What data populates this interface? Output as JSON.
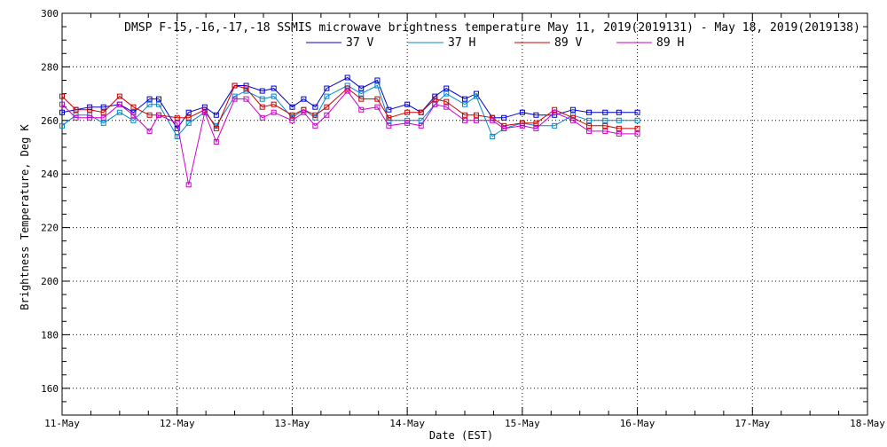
{
  "chart_data": {
    "type": "line",
    "title": "DMSP F-15,-16,-17,-18 SSMIS microwave brightness temperature May 11, 2019(2019131) - May 18, 2019(2019138)",
    "xlabel": "Date (EST)",
    "ylabel": "Brightness Temperature, Deg K",
    "xlim": [
      0,
      7
    ],
    "ylim": [
      150,
      300
    ],
    "grid": true,
    "legend_position": "top-center",
    "x_tick_labels": [
      "11-May",
      "12-May",
      "13-May",
      "14-May",
      "15-May",
      "16-May",
      "17-May",
      "18-May"
    ],
    "y_tick_labels": [
      "160",
      "180",
      "200",
      "220",
      "240",
      "260",
      "280",
      "300"
    ],
    "series": [
      {
        "name": "37 V",
        "color": "#0000cc",
        "x": [
          0.0,
          0.12,
          0.24,
          0.36,
          0.5,
          0.62,
          0.76,
          0.84,
          1.0,
          1.1,
          1.24,
          1.34,
          1.5,
          1.6,
          1.74,
          1.84,
          2.0,
          2.1,
          2.2,
          2.3,
          2.48,
          2.6,
          2.74,
          2.84,
          3.0,
          3.12,
          3.24,
          3.34,
          3.5,
          3.6,
          3.74,
          3.84,
          4.0,
          4.12,
          4.28,
          4.44,
          4.58,
          4.72,
          4.84,
          5.0
        ],
        "values": [
          263,
          264,
          265,
          265,
          266,
          263,
          268,
          268,
          257,
          263,
          265,
          262,
          273,
          273,
          271,
          272,
          265,
          268,
          265,
          272,
          276,
          272,
          275,
          264,
          266,
          263,
          269,
          272,
          268,
          270,
          261,
          261,
          263,
          262,
          262,
          264,
          263,
          263,
          263,
          263
        ]
      },
      {
        "name": "37 H",
        "color": "#0088cc",
        "x": [
          0.0,
          0.12,
          0.24,
          0.36,
          0.5,
          0.62,
          0.76,
          0.84,
          1.0,
          1.1,
          1.24,
          1.34,
          1.5,
          1.6,
          1.74,
          1.84,
          2.0,
          2.1,
          2.2,
          2.3,
          2.48,
          2.6,
          2.74,
          2.84,
          3.0,
          3.12,
          3.24,
          3.34,
          3.5,
          3.6,
          3.74,
          3.84,
          4.0,
          4.12,
          4.28,
          4.44,
          4.58,
          4.72,
          4.84,
          5.0
        ],
        "values": [
          258,
          262,
          262,
          259,
          263,
          260,
          266,
          266,
          254,
          259,
          263,
          258,
          269,
          271,
          268,
          269,
          261,
          264,
          261,
          269,
          273,
          270,
          273,
          260,
          260,
          260,
          266,
          270,
          266,
          269,
          254,
          257,
          259,
          258,
          258,
          262,
          260,
          260,
          260,
          260
        ]
      },
      {
        "name": "89 V",
        "color": "#cc0000",
        "x": [
          0.0,
          0.12,
          0.24,
          0.36,
          0.5,
          0.62,
          0.76,
          0.84,
          1.0,
          1.1,
          1.24,
          1.34,
          1.5,
          1.6,
          1.74,
          1.84,
          2.0,
          2.1,
          2.2,
          2.3,
          2.48,
          2.6,
          2.74,
          2.84,
          3.0,
          3.12,
          3.24,
          3.34,
          3.5,
          3.6,
          3.74,
          3.84,
          4.0,
          4.12,
          4.28,
          4.44,
          4.58,
          4.72,
          4.84,
          5.0
        ],
        "values": [
          269,
          264,
          264,
          263,
          269,
          265,
          262,
          262,
          261,
          261,
          264,
          257,
          273,
          272,
          265,
          266,
          262,
          264,
          262,
          265,
          272,
          268,
          268,
          261,
          263,
          263,
          268,
          267,
          262,
          262,
          261,
          258,
          259,
          259,
          264,
          261,
          258,
          258,
          257,
          257
        ]
      },
      {
        "name": "89 H",
        "color": "#cc00cc",
        "x": [
          0.0,
          0.12,
          0.24,
          0.36,
          0.5,
          0.62,
          0.76,
          0.84,
          1.0,
          1.1,
          1.24,
          1.34,
          1.5,
          1.6,
          1.74,
          1.84,
          2.0,
          2.1,
          2.2,
          2.3,
          2.48,
          2.6,
          2.74,
          2.84,
          3.0,
          3.12,
          3.24,
          3.34,
          3.5,
          3.6,
          3.74,
          3.84,
          4.0,
          4.12,
          4.28,
          4.44,
          4.58,
          4.72,
          4.84,
          5.0
        ],
        "values": [
          266,
          261,
          261,
          261,
          266,
          262,
          256,
          262,
          259,
          236,
          263,
          252,
          268,
          268,
          261,
          263,
          260,
          263,
          258,
          262,
          271,
          264,
          265,
          258,
          259,
          258,
          266,
          265,
          260,
          260,
          260,
          257,
          258,
          257,
          263,
          260,
          256,
          256,
          255,
          255
        ]
      }
    ]
  }
}
